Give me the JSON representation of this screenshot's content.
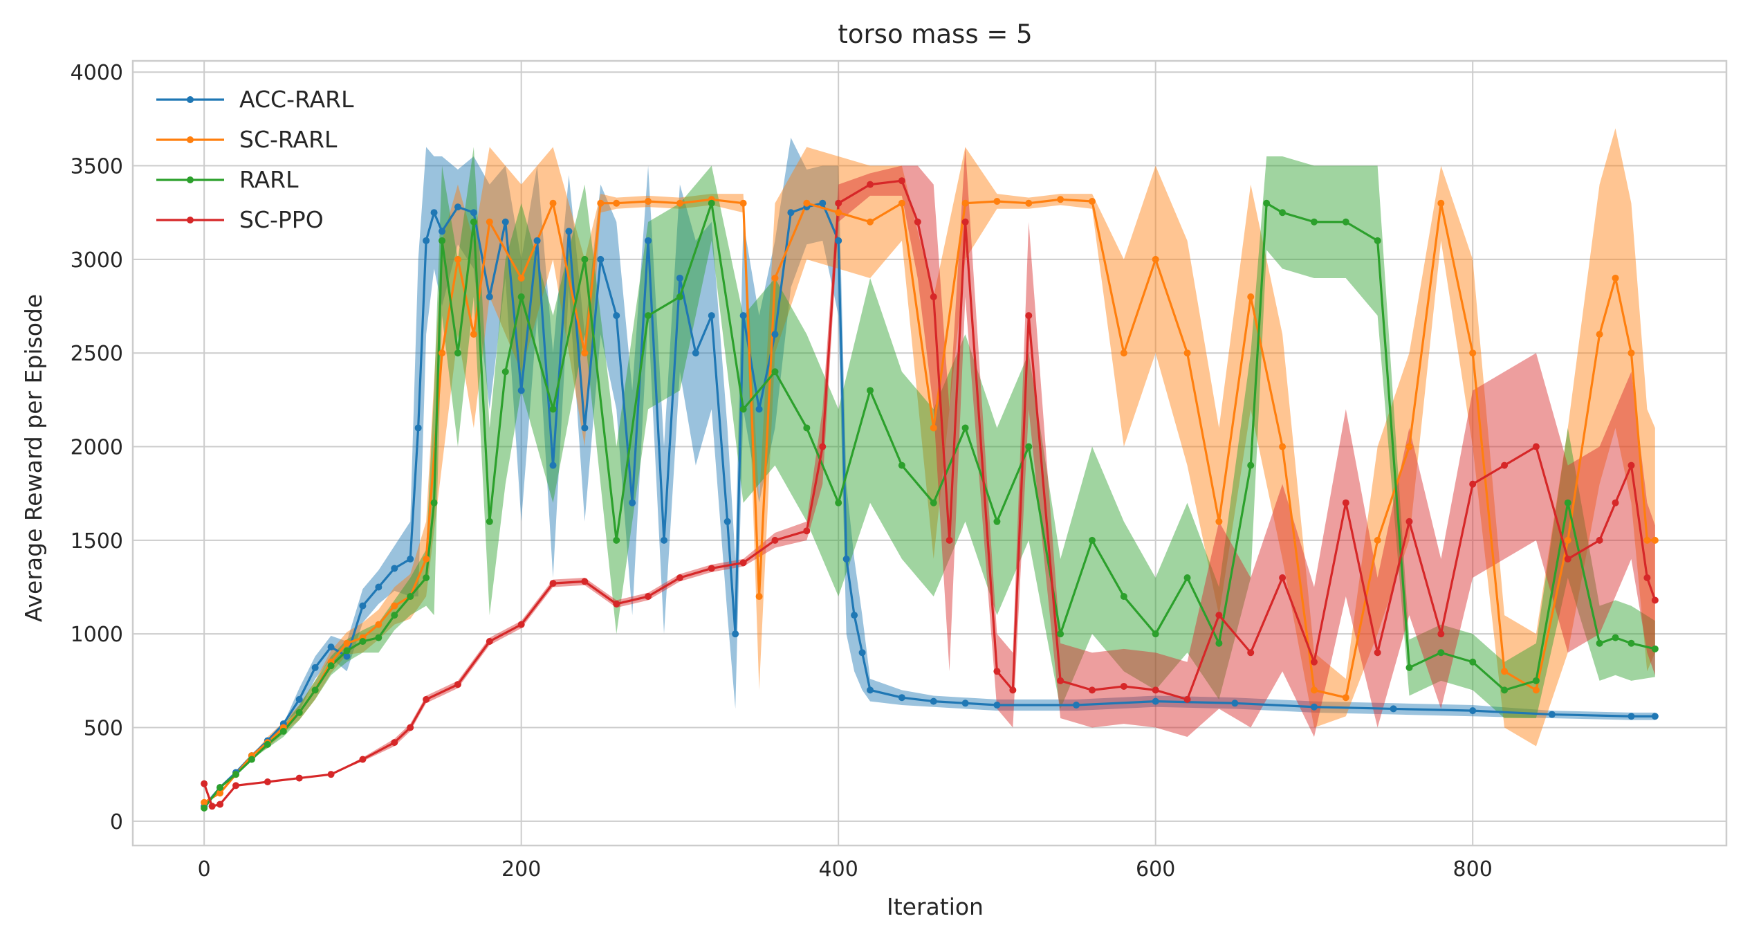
{
  "chart_data": {
    "type": "line",
    "title": "torso mass = 5",
    "xlabel": "Iteration",
    "ylabel": "Average Reward per Episode",
    "xlim": [
      -45,
      960
    ],
    "ylim": [
      -130,
      4060
    ],
    "xticks": [
      0,
      200,
      400,
      600,
      800
    ],
    "xtick_labels": [
      "0",
      "200",
      "400",
      "600",
      "800"
    ],
    "yticks": [
      0,
      500,
      1000,
      1500,
      2000,
      2500,
      3000,
      3500,
      4000
    ],
    "ytick_labels": [
      "0",
      "500",
      "1000",
      "1500",
      "2000",
      "2500",
      "3000",
      "3500",
      "4000"
    ],
    "grid": true,
    "legend_position": "top-left",
    "markers": true,
    "shaded_band": "spread across runs",
    "series": [
      {
        "name": "ACC-RARL",
        "color": "#1f77b4",
        "x": [
          0,
          10,
          20,
          30,
          40,
          50,
          60,
          70,
          80,
          90,
          100,
          110,
          120,
          130,
          135,
          140,
          145,
          150,
          160,
          170,
          180,
          190,
          200,
          210,
          220,
          230,
          240,
          250,
          260,
          270,
          280,
          290,
          300,
          310,
          320,
          330,
          335,
          340,
          350,
          360,
          370,
          380,
          390,
          400,
          405,
          410,
          415,
          420,
          440,
          460,
          480,
          500,
          550,
          600,
          650,
          700,
          750,
          800,
          850,
          900,
          915
        ],
        "y": [
          80,
          180,
          260,
          350,
          430,
          520,
          650,
          820,
          930,
          880,
          1150,
          1250,
          1350,
          1400,
          2100,
          3100,
          3250,
          3150,
          3280,
          3250,
          2800,
          3200,
          2300,
          3100,
          1900,
          3150,
          2100,
          3000,
          2700,
          1700,
          3100,
          1500,
          2900,
          2500,
          2700,
          1600,
          1000,
          2700,
          2200,
          2600,
          3250,
          3280,
          3300,
          3100,
          1400,
          1100,
          900,
          700,
          660,
          640,
          630,
          620,
          620,
          640,
          630,
          610,
          600,
          590,
          570,
          560,
          560
        ],
        "band": [
          0,
          0,
          0,
          0,
          0,
          0,
          60,
          60,
          60,
          80,
          90,
          90,
          120,
          200,
          900,
          500,
          300,
          400,
          200,
          300,
          600,
          300,
          700,
          400,
          600,
          300,
          500,
          400,
          500,
          600,
          400,
          500,
          500,
          600,
          500,
          500,
          400,
          500,
          500,
          500,
          400,
          200,
          200,
          400,
          400,
          300,
          200,
          60,
          40,
          30,
          30,
          30,
          30,
          30,
          30,
          30,
          30,
          30,
          20,
          20,
          20
        ]
      },
      {
        "name": "SC-RARL",
        "color": "#ff7f0e",
        "x": [
          0,
          10,
          20,
          30,
          40,
          50,
          60,
          70,
          80,
          90,
          100,
          110,
          120,
          130,
          140,
          150,
          160,
          170,
          180,
          200,
          220,
          240,
          250,
          260,
          280,
          300,
          320,
          340,
          350,
          360,
          380,
          400,
          420,
          440,
          460,
          480,
          500,
          520,
          540,
          560,
          580,
          600,
          620,
          640,
          660,
          680,
          700,
          720,
          740,
          760,
          780,
          800,
          820,
          840,
          860,
          880,
          890,
          900,
          910,
          915
        ],
        "y": [
          100,
          150,
          250,
          350,
          420,
          500,
          580,
          700,
          850,
          950,
          980,
          1050,
          1150,
          1200,
          1400,
          2500,
          3000,
          2600,
          3200,
          2900,
          3300,
          2500,
          3300,
          3300,
          3310,
          3300,
          3320,
          3300,
          1200,
          2900,
          3300,
          3250,
          3200,
          3300,
          2100,
          3300,
          3310,
          3300,
          3320,
          3310,
          2500,
          3000,
          2500,
          1600,
          2800,
          2000,
          700,
          660,
          1500,
          2000,
          3300,
          2500,
          800,
          700,
          1500,
          2600,
          2900,
          2500,
          1500,
          1500
        ],
        "band": [
          0,
          0,
          0,
          0,
          30,
          30,
          40,
          50,
          60,
          60,
          80,
          80,
          100,
          120,
          200,
          600,
          400,
          500,
          400,
          500,
          300,
          500,
          50,
          30,
          30,
          30,
          30,
          50,
          500,
          400,
          300,
          300,
          300,
          200,
          700,
          300,
          40,
          30,
          30,
          40,
          500,
          500,
          600,
          500,
          600,
          600,
          200,
          100,
          500,
          500,
          200,
          500,
          300,
          300,
          600,
          800,
          800,
          800,
          700,
          600
        ]
      },
      {
        "name": "RARL",
        "color": "#2ca02c",
        "x": [
          0,
          10,
          20,
          30,
          40,
          50,
          60,
          70,
          80,
          90,
          100,
          110,
          120,
          130,
          140,
          145,
          150,
          160,
          170,
          180,
          190,
          200,
          220,
          240,
          260,
          280,
          300,
          320,
          340,
          360,
          380,
          400,
          420,
          440,
          460,
          480,
          500,
          520,
          540,
          560,
          580,
          600,
          620,
          640,
          660,
          670,
          680,
          700,
          720,
          740,
          760,
          780,
          800,
          820,
          840,
          860,
          880,
          890,
          900,
          915
        ],
        "y": [
          70,
          180,
          250,
          330,
          410,
          480,
          580,
          700,
          830,
          910,
          960,
          980,
          1100,
          1200,
          1300,
          1700,
          3100,
          2500,
          3200,
          1600,
          2400,
          2800,
          2200,
          3000,
          1500,
          2700,
          2800,
          3300,
          2200,
          2400,
          2100,
          1700,
          2300,
          1900,
          1700,
          2100,
          1600,
          2000,
          1000,
          1500,
          1200,
          1000,
          1300,
          950,
          1900,
          3300,
          3250,
          3200,
          3200,
          3100,
          820,
          900,
          850,
          700,
          750,
          1700,
          950,
          980,
          950,
          920
        ],
        "band": [
          0,
          0,
          0,
          0,
          20,
          30,
          40,
          50,
          50,
          60,
          60,
          80,
          80,
          100,
          150,
          600,
          400,
          500,
          400,
          500,
          600,
          500,
          500,
          400,
          500,
          500,
          500,
          200,
          500,
          500,
          500,
          500,
          600,
          500,
          500,
          500,
          500,
          500,
          400,
          500,
          400,
          300,
          400,
          300,
          600,
          250,
          300,
          300,
          300,
          400,
          150,
          150,
          150,
          150,
          200,
          400,
          200,
          200,
          200,
          150
        ]
      },
      {
        "name": "SC-PPO",
        "color": "#d62728",
        "x": [
          0,
          5,
          10,
          20,
          40,
          60,
          80,
          100,
          120,
          130,
          140,
          160,
          180,
          200,
          220,
          240,
          260,
          280,
          300,
          320,
          340,
          360,
          380,
          390,
          400,
          420,
          440,
          450,
          460,
          470,
          480,
          500,
          510,
          520,
          540,
          560,
          580,
          600,
          620,
          640,
          660,
          680,
          700,
          720,
          740,
          760,
          780,
          800,
          820,
          840,
          860,
          880,
          890,
          900,
          910,
          915
        ],
        "y": [
          200,
          80,
          90,
          190,
          210,
          230,
          250,
          330,
          420,
          500,
          650,
          730,
          960,
          1050,
          1270,
          1280,
          1160,
          1200,
          1300,
          1350,
          1380,
          1500,
          1550,
          2000,
          3300,
          3400,
          3420,
          3200,
          2800,
          1500,
          3200,
          800,
          700,
          2700,
          750,
          700,
          720,
          700,
          650,
          1100,
          900,
          1300,
          850,
          1700,
          900,
          1600,
          1000,
          1800,
          1900,
          2000,
          1400,
          1500,
          1700,
          1900,
          1300,
          1180
        ],
        "band": [
          0,
          0,
          0,
          0,
          0,
          0,
          0,
          10,
          20,
          20,
          20,
          20,
          20,
          20,
          20,
          20,
          20,
          20,
          20,
          20,
          20,
          40,
          50,
          200,
          100,
          60,
          80,
          300,
          600,
          700,
          400,
          200,
          200,
          500,
          200,
          200,
          200,
          200,
          200,
          500,
          400,
          500,
          400,
          500,
          400,
          500,
          400,
          500,
          500,
          500,
          500,
          500,
          500,
          500,
          400,
          400
        ]
      }
    ]
  }
}
